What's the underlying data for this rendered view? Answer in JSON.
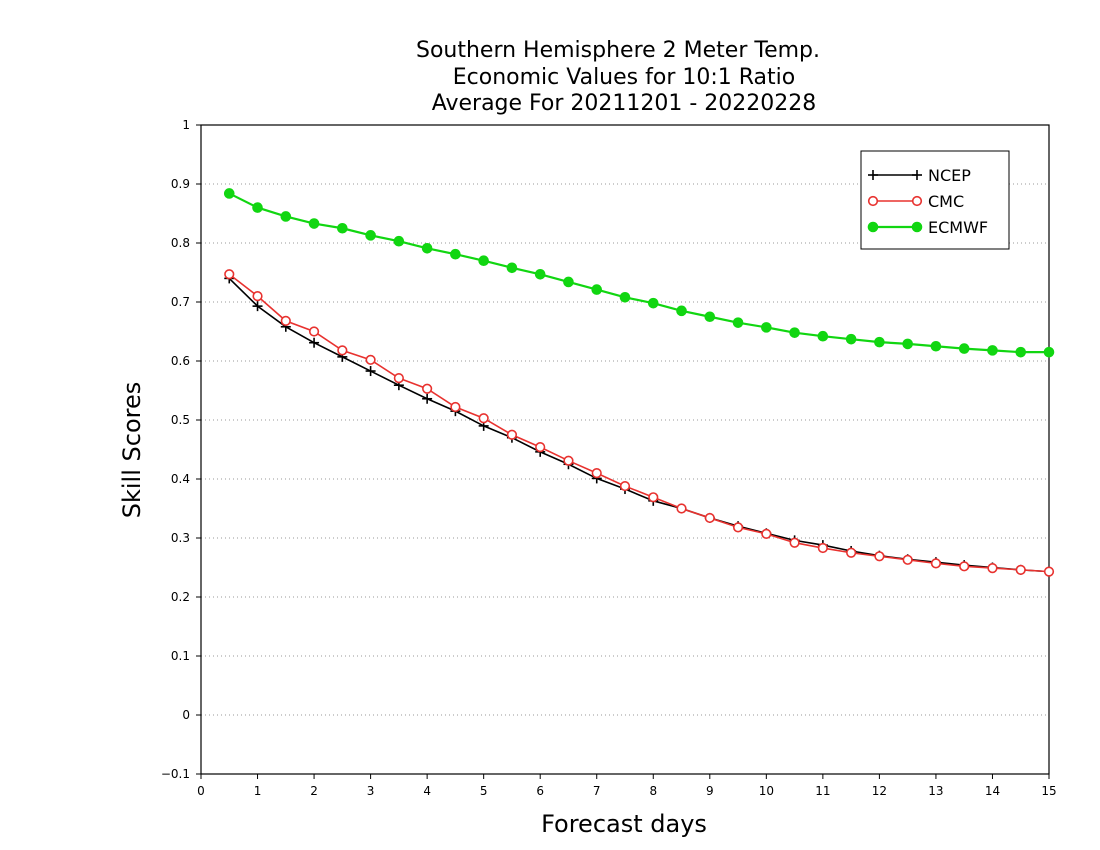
{
  "chart_data": {
    "type": "line",
    "title_lines": [
      "Southern Hemisphere 2 Meter Temp.",
      "Economic Values for 10:1 Ratio",
      "Average For 20211201 - 20220228"
    ],
    "xlabel": "Forecast days",
    "ylabel": "Skill Scores",
    "xlim": [
      0,
      15
    ],
    "ylim": [
      -0.1,
      1
    ],
    "x_ticks": [
      "0",
      "1",
      "2",
      "3",
      "4",
      "5",
      "6",
      "7",
      "8",
      "9",
      "10",
      "11",
      "12",
      "13",
      "14",
      "15"
    ],
    "y_ticks": [
      "−0.1",
      "0",
      "0.1",
      "0.2",
      "0.3",
      "0.4",
      "0.5",
      "0.6",
      "0.7",
      "0.8",
      "0.9",
      "1"
    ],
    "grid": "horizontal-dotted",
    "legend_position": "top-right",
    "x": [
      0.5,
      1,
      1.5,
      2,
      2.5,
      3,
      3.5,
      4,
      4.5,
      5,
      5.5,
      6,
      6.5,
      7,
      7.5,
      8,
      8.5,
      9,
      9.5,
      10,
      10.5,
      11,
      11.5,
      12,
      12.5,
      13,
      13.5,
      14,
      14.5,
      15
    ],
    "series": [
      {
        "name": "NCEP",
        "color": "#000000",
        "marker": "plus",
        "values": [
          0.74,
          0.693,
          0.658,
          0.631,
          0.607,
          0.583,
          0.559,
          0.536,
          0.515,
          0.49,
          0.47,
          0.446,
          0.425,
          0.401,
          0.383,
          0.363,
          0.35,
          0.334,
          0.32,
          0.308,
          0.296,
          0.288,
          0.278,
          0.27,
          0.264,
          0.259,
          0.254,
          0.25,
          0.246,
          0.243
        ]
      },
      {
        "name": "CMC",
        "color": "#e8322f",
        "marker": "open-circle",
        "values": [
          0.747,
          0.71,
          0.668,
          0.65,
          0.618,
          0.602,
          0.571,
          0.553,
          0.522,
          0.503,
          0.475,
          0.454,
          0.431,
          0.41,
          0.388,
          0.369,
          0.35,
          0.334,
          0.318,
          0.307,
          0.292,
          0.283,
          0.275,
          0.269,
          0.263,
          0.257,
          0.252,
          0.249,
          0.246,
          0.243
        ]
      },
      {
        "name": "ECMWF",
        "color": "#11d611",
        "marker": "filled-circle",
        "values": [
          0.884,
          0.86,
          0.845,
          0.833,
          0.825,
          0.813,
          0.803,
          0.791,
          0.781,
          0.77,
          0.758,
          0.747,
          0.734,
          0.721,
          0.708,
          0.698,
          0.685,
          0.675,
          0.665,
          0.657,
          0.648,
          0.642,
          0.637,
          0.632,
          0.629,
          0.625,
          0.621,
          0.618,
          0.615,
          0.615
        ]
      }
    ]
  }
}
